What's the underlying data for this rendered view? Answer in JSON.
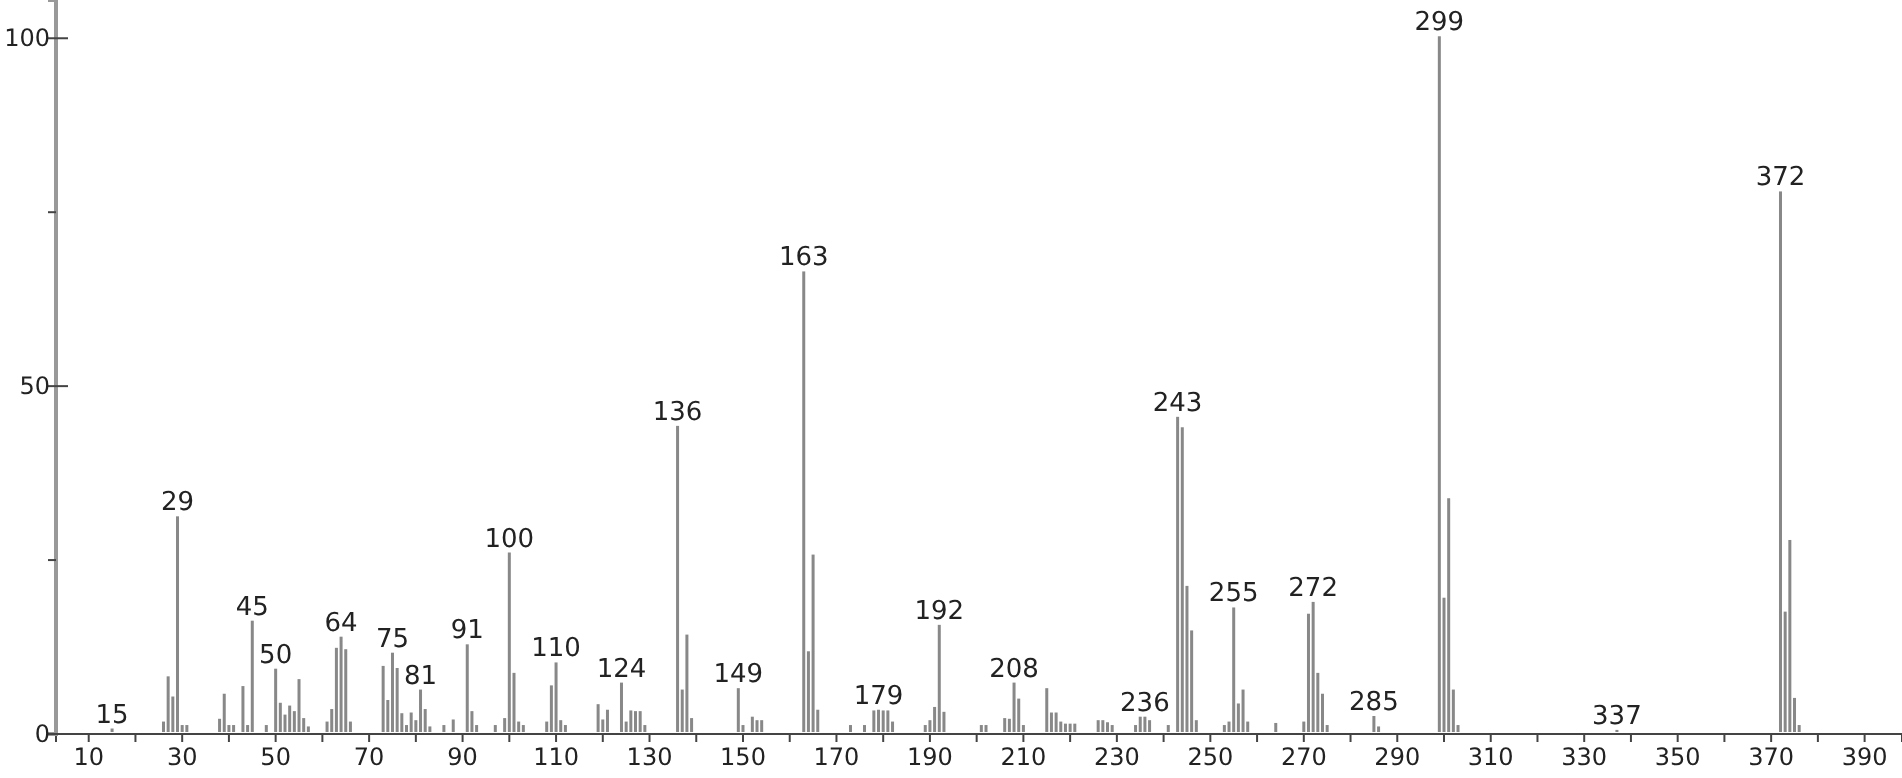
{
  "chart_data": {
    "type": "bar",
    "x": [
      15,
      26,
      27,
      28,
      29,
      30,
      31,
      38,
      39,
      40,
      41,
      43,
      44,
      45,
      48,
      50,
      51,
      52,
      53,
      54,
      55,
      56,
      57,
      61,
      62,
      63,
      64,
      65,
      66,
      73,
      74,
      75,
      76,
      77,
      78,
      79,
      80,
      81,
      82,
      83,
      86,
      88,
      91,
      92,
      93,
      97,
      99,
      100,
      101,
      102,
      103,
      108,
      109,
      110,
      111,
      112,
      119,
      120,
      121,
      124,
      125,
      126,
      127,
      128,
      129,
      136,
      137,
      138,
      139,
      149,
      150,
      152,
      153,
      154,
      163,
      164,
      165,
      166,
      173,
      176,
      178,
      179,
      180,
      181,
      182,
      189,
      190,
      191,
      192,
      193,
      201,
      202,
      206,
      207,
      208,
      209,
      210,
      215,
      216,
      217,
      218,
      219,
      220,
      221,
      226,
      227,
      228,
      229,
      234,
      235,
      236,
      237,
      241,
      243,
      244,
      245,
      246,
      247,
      253,
      254,
      255,
      256,
      257,
      258,
      264,
      270,
      271,
      272,
      273,
      274,
      275,
      285,
      286,
      299,
      300,
      301,
      302,
      303,
      337,
      372,
      373,
      374,
      375,
      376
    ],
    "values": [
      0.5,
      1.5,
      8,
      5.1,
      31,
      1,
      1,
      1.9,
      5.5,
      1,
      1,
      6.6,
      1,
      16,
      1,
      9.1,
      4.2,
      2.5,
      3.8,
      3,
      7.6,
      2,
      0.8,
      1.5,
      3.3,
      12.1,
      13.7,
      11.9,
      1.5,
      9.5,
      4.6,
      11.4,
      9.2,
      2.7,
      1,
      2.8,
      1.7,
      6.1,
      3.3,
      0.8,
      1,
      1.8,
      12.6,
      3,
      1,
      1,
      2,
      25.8,
      8.5,
      1.5,
      1,
      1.5,
      6.7,
      10,
      1.7,
      1,
      4,
      1.8,
      3.2,
      7.1,
      1.5,
      3.1,
      3,
      3,
      1,
      44,
      6.1,
      14,
      2,
      6.3,
      1,
      2.2,
      1.7,
      1.7,
      66.2,
      11.6,
      25.5,
      3.2,
      1,
      1,
      3.1,
      3.2,
      3.1,
      3.1,
      1.5,
      1,
      1.7,
      3.6,
      15.4,
      2.9,
      1,
      1,
      2,
      1.9,
      7.1,
      4.8,
      1,
      6.3,
      2.8,
      2.8,
      1.5,
      1.2,
      1.2,
      1.2,
      1.7,
      1.7,
      1.4,
      1,
      1,
      2.2,
      2.2,
      1.7,
      1,
      45.3,
      43.8,
      21,
      14.6,
      1.7,
      1,
      1.5,
      17.9,
      4.1,
      6.1,
      1.5,
      1.3,
      1.5,
      17,
      18.7,
      8.5,
      5.5,
      1,
      2.3,
      0.8,
      100,
      19.3,
      33.6,
      6.1,
      1,
      0.3,
      77.7,
      17.3,
      27.6,
      4.9,
      1
    ],
    "color": "#888888",
    "xlim": [
      3,
      398
    ],
    "xticks": [
      10,
      {
        "value": 20,
        "label": null
      },
      30,
      {
        "value": 40,
        "label": null
      },
      50,
      {
        "value": 60,
        "label": null
      },
      70,
      {
        "value": 80,
        "label": null
      },
      90,
      {
        "value": 100,
        "label": null
      },
      110,
      {
        "value": 120,
        "label": null
      },
      130,
      {
        "value": 140,
        "label": null
      },
      150,
      {
        "value": 160,
        "label": null
      },
      170,
      {
        "value": 180,
        "label": null
      },
      190,
      {
        "value": 200,
        "label": null
      },
      210,
      {
        "value": 220,
        "label": null
      },
      230,
      {
        "value": 240,
        "label": null
      },
      250,
      {
        "value": 260,
        "label": null
      },
      270,
      {
        "value": 280,
        "label": null
      },
      290,
      {
        "value": 300,
        "label": null
      },
      310,
      {
        "value": 320,
        "label": null
      },
      330,
      {
        "value": 340,
        "label": null
      },
      350,
      {
        "value": 360,
        "label": null
      },
      370,
      {
        "value": 380,
        "label": null
      },
      390
    ],
    "ylim": [
      0,
      105.5
    ],
    "yticks": [
      0,
      {
        "value": 25,
        "label": null
      },
      50,
      {
        "value": 75,
        "label": null
      },
      100
    ],
    "annotations": [
      {
        "text": "15",
        "x": 15,
        "y": 0.5
      },
      {
        "text": "29",
        "x": 29,
        "y": 31
      },
      {
        "text": "45",
        "x": 45,
        "y": 16
      },
      {
        "text": "50",
        "x": 50,
        "y": 9.1
      },
      {
        "text": "64",
        "x": 64,
        "y": 13.7
      },
      {
        "text": "75",
        "x": 75,
        "y": 11.4
      },
      {
        "text": "81",
        "x": 81,
        "y": 6.1
      },
      {
        "text": "91",
        "x": 91,
        "y": 12.6
      },
      {
        "text": "100",
        "x": 100,
        "y": 25.8
      },
      {
        "text": "110",
        "x": 110,
        "y": 10
      },
      {
        "text": "124",
        "x": 124,
        "y": 7.1
      },
      {
        "text": "136",
        "x": 136,
        "y": 44
      },
      {
        "text": "149",
        "x": 149,
        "y": 6.3
      },
      {
        "text": "163",
        "x": 163,
        "y": 66.2
      },
      {
        "text": "179",
        "x": 179,
        "y": 3.2
      },
      {
        "text": "192",
        "x": 192,
        "y": 15.4
      },
      {
        "text": "208",
        "x": 208,
        "y": 7.1
      },
      {
        "text": "236",
        "x": 236,
        "y": 2.2
      },
      {
        "text": "243",
        "x": 243,
        "y": 45.3
      },
      {
        "text": "255",
        "x": 255,
        "y": 17.9
      },
      {
        "text": "272",
        "x": 272,
        "y": 18.7
      },
      {
        "text": "285",
        "x": 285,
        "y": 2.3
      },
      {
        "text": "299",
        "x": 299,
        "y": 100
      },
      {
        "text": "337",
        "x": 337,
        "y": 0.3
      },
      {
        "text": "372",
        "x": 372,
        "y": 77.7
      }
    ],
    "grid": false
  }
}
